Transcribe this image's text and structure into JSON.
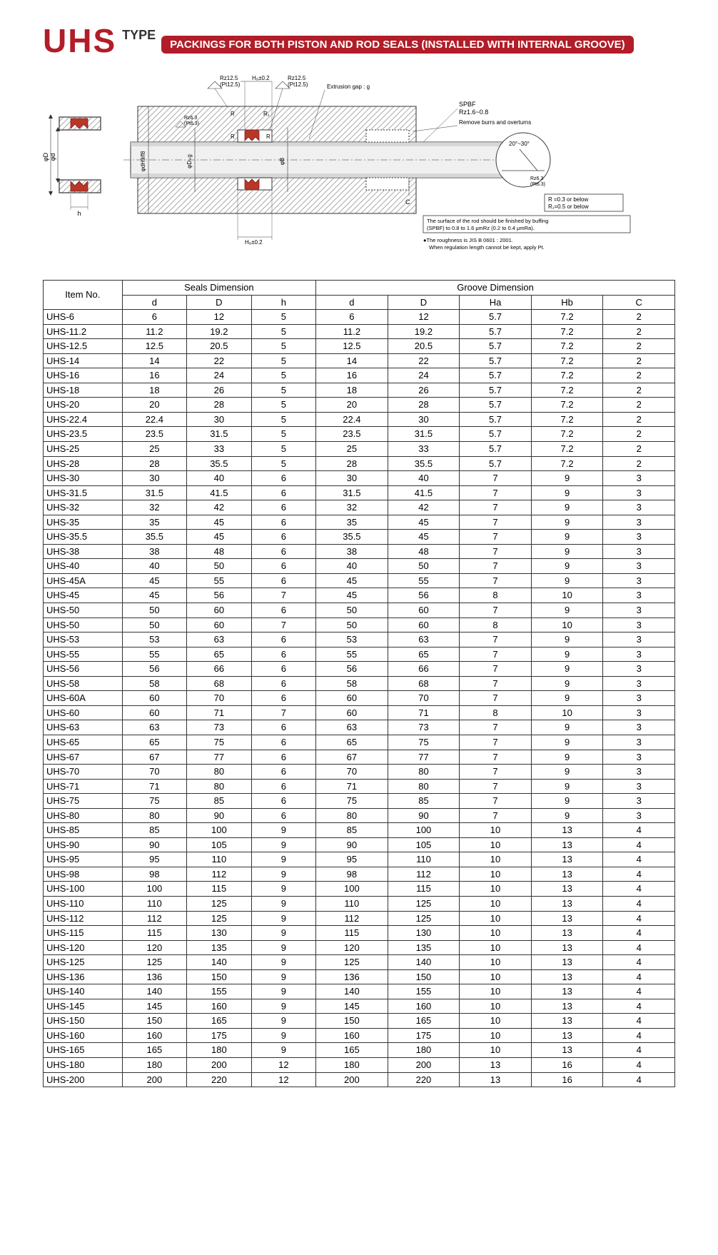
{
  "header": {
    "brand": "UHS",
    "type_label": "TYPE",
    "banner": "PACKINGS FOR BOTH PISTON AND ROD SEALS (INSTALLED WITH INTERNAL GROOVE)"
  },
  "diagram": {
    "labels": {
      "rz125_1": "Rz12.5",
      "pt125_1": "(Pt12.5)",
      "hb_tol": "H₈±0.2",
      "rz125_2": "Rz12.5",
      "pt125_2": "(Pt12.5)",
      "extrusion_gap": "Extrusion gap : g",
      "rz63": "Rz6.3",
      "pt63": "(Pt6.3)",
      "spbf": "SPBF",
      "spbf_val": "Rz1.6~0.8",
      "remove_burrs": "Remove burrs and overturns",
      "angle": "20°~30°",
      "rz63r": "Rz6.3",
      "pt63r": "(Pt6.3)",
      "r_note1": "R =0.3 or below",
      "r_note2": "R₁=0.5 or below",
      "surface_note": "The surface of the rod should be finished by buffing (SPBF) to 0.8 to 1.6 μmRz (0.2 to 0.4 μmRa).",
      "roughness_note": "●The roughness is JIS B 0601 : 2001.\nWhen regulation length cannot be kept, apply Pt.",
      "phi_D": "φD",
      "phi_d": "φd",
      "h": "h",
      "phi_dH9f8": "φdH9/f8",
      "phi_D_g": "φD₊g",
      "phi_B": "φB",
      "ha_tol": "H₈±0.2",
      "R": "R",
      "R1": "R₁",
      "C": "C"
    }
  },
  "table": {
    "headers": {
      "item_no": "Item No.",
      "seals_dim": "Seals Dimension",
      "groove_dim": "Groove Dimension",
      "d": "d",
      "D": "D",
      "h": "h",
      "gd": "d",
      "gD": "D",
      "Ha": "Ha",
      "Hb": "Hb",
      "C": "C"
    },
    "rows": [
      [
        "UHS-6",
        "6",
        "12",
        "5",
        "6",
        "12",
        "5.7",
        "7.2",
        "2"
      ],
      [
        "UHS-11.2",
        "11.2",
        "19.2",
        "5",
        "11.2",
        "19.2",
        "5.7",
        "7.2",
        "2"
      ],
      [
        "UHS-12.5",
        "12.5",
        "20.5",
        "5",
        "12.5",
        "20.5",
        "5.7",
        "7.2",
        "2"
      ],
      [
        "UHS-14",
        "14",
        "22",
        "5",
        "14",
        "22",
        "5.7",
        "7.2",
        "2"
      ],
      [
        "UHS-16",
        "16",
        "24",
        "5",
        "16",
        "24",
        "5.7",
        "7.2",
        "2"
      ],
      [
        "UHS-18",
        "18",
        "26",
        "5",
        "18",
        "26",
        "5.7",
        "7.2",
        "2"
      ],
      [
        "UHS-20",
        "20",
        "28",
        "5",
        "20",
        "28",
        "5.7",
        "7.2",
        "2"
      ],
      [
        "UHS-22.4",
        "22.4",
        "30",
        "5",
        "22.4",
        "30",
        "5.7",
        "7.2",
        "2"
      ],
      [
        "UHS-23.5",
        "23.5",
        "31.5",
        "5",
        "23.5",
        "31.5",
        "5.7",
        "7.2",
        "2"
      ],
      [
        "UHS-25",
        "25",
        "33",
        "5",
        "25",
        "33",
        "5.7",
        "7.2",
        "2"
      ],
      [
        "UHS-28",
        "28",
        "35.5",
        "5",
        "28",
        "35.5",
        "5.7",
        "7.2",
        "2"
      ],
      [
        "UHS-30",
        "30",
        "40",
        "6",
        "30",
        "40",
        "7",
        "9",
        "3"
      ],
      [
        "UHS-31.5",
        "31.5",
        "41.5",
        "6",
        "31.5",
        "41.5",
        "7",
        "9",
        "3"
      ],
      [
        "UHS-32",
        "32",
        "42",
        "6",
        "32",
        "42",
        "7",
        "9",
        "3"
      ],
      [
        "UHS-35",
        "35",
        "45",
        "6",
        "35",
        "45",
        "7",
        "9",
        "3"
      ],
      [
        "UHS-35.5",
        "35.5",
        "45",
        "6",
        "35.5",
        "45",
        "7",
        "9",
        "3"
      ],
      [
        "UHS-38",
        "38",
        "48",
        "6",
        "38",
        "48",
        "7",
        "9",
        "3"
      ],
      [
        "UHS-40",
        "40",
        "50",
        "6",
        "40",
        "50",
        "7",
        "9",
        "3"
      ],
      [
        "UHS-45A",
        "45",
        "55",
        "6",
        "45",
        "55",
        "7",
        "9",
        "3"
      ],
      [
        "UHS-45",
        "45",
        "56",
        "7",
        "45",
        "56",
        "8",
        "10",
        "3"
      ],
      [
        "UHS-50",
        "50",
        "60",
        "6",
        "50",
        "60",
        "7",
        "9",
        "3"
      ],
      [
        "UHS-50",
        "50",
        "60",
        "7",
        "50",
        "60",
        "8",
        "10",
        "3"
      ],
      [
        "UHS-53",
        "53",
        "63",
        "6",
        "53",
        "63",
        "7",
        "9",
        "3"
      ],
      [
        "UHS-55",
        "55",
        "65",
        "6",
        "55",
        "65",
        "7",
        "9",
        "3"
      ],
      [
        "UHS-56",
        "56",
        "66",
        "6",
        "56",
        "66",
        "7",
        "9",
        "3"
      ],
      [
        "UHS-58",
        "58",
        "68",
        "6",
        "58",
        "68",
        "7",
        "9",
        "3"
      ],
      [
        "UHS-60A",
        "60",
        "70",
        "6",
        "60",
        "70",
        "7",
        "9",
        "3"
      ],
      [
        "UHS-60",
        "60",
        "71",
        "7",
        "60",
        "71",
        "8",
        "10",
        "3"
      ],
      [
        "UHS-63",
        "63",
        "73",
        "6",
        "63",
        "73",
        "7",
        "9",
        "3"
      ],
      [
        "UHS-65",
        "65",
        "75",
        "6",
        "65",
        "75",
        "7",
        "9",
        "3"
      ],
      [
        "UHS-67",
        "67",
        "77",
        "6",
        "67",
        "77",
        "7",
        "9",
        "3"
      ],
      [
        "UHS-70",
        "70",
        "80",
        "6",
        "70",
        "80",
        "7",
        "9",
        "3"
      ],
      [
        "UHS-71",
        "71",
        "80",
        "6",
        "71",
        "80",
        "7",
        "9",
        "3"
      ],
      [
        "UHS-75",
        "75",
        "85",
        "6",
        "75",
        "85",
        "7",
        "9",
        "3"
      ],
      [
        "UHS-80",
        "80",
        "90",
        "6",
        "80",
        "90",
        "7",
        "9",
        "3"
      ],
      [
        "UHS-85",
        "85",
        "100",
        "9",
        "85",
        "100",
        "10",
        "13",
        "4"
      ],
      [
        "UHS-90",
        "90",
        "105",
        "9",
        "90",
        "105",
        "10",
        "13",
        "4"
      ],
      [
        "UHS-95",
        "95",
        "110",
        "9",
        "95",
        "110",
        "10",
        "13",
        "4"
      ],
      [
        "UHS-98",
        "98",
        "112",
        "9",
        "98",
        "112",
        "10",
        "13",
        "4"
      ],
      [
        "UHS-100",
        "100",
        "115",
        "9",
        "100",
        "115",
        "10",
        "13",
        "4"
      ],
      [
        "UHS-110",
        "110",
        "125",
        "9",
        "110",
        "125",
        "10",
        "13",
        "4"
      ],
      [
        "UHS-112",
        "112",
        "125",
        "9",
        "112",
        "125",
        "10",
        "13",
        "4"
      ],
      [
        "UHS-115",
        "115",
        "130",
        "9",
        "115",
        "130",
        "10",
        "13",
        "4"
      ],
      [
        "UHS-120",
        "120",
        "135",
        "9",
        "120",
        "135",
        "10",
        "13",
        "4"
      ],
      [
        "UHS-125",
        "125",
        "140",
        "9",
        "125",
        "140",
        "10",
        "13",
        "4"
      ],
      [
        "UHS-136",
        "136",
        "150",
        "9",
        "136",
        "150",
        "10",
        "13",
        "4"
      ],
      [
        "UHS-140",
        "140",
        "155",
        "9",
        "140",
        "155",
        "10",
        "13",
        "4"
      ],
      [
        "UHS-145",
        "145",
        "160",
        "9",
        "145",
        "160",
        "10",
        "13",
        "4"
      ],
      [
        "UHS-150",
        "150",
        "165",
        "9",
        "150",
        "165",
        "10",
        "13",
        "4"
      ],
      [
        "UHS-160",
        "160",
        "175",
        "9",
        "160",
        "175",
        "10",
        "13",
        "4"
      ],
      [
        "UHS-165",
        "165",
        "180",
        "9",
        "165",
        "180",
        "10",
        "13",
        "4"
      ],
      [
        "UHS-180",
        "180",
        "200",
        "12",
        "180",
        "200",
        "13",
        "16",
        "4"
      ],
      [
        "UHS-200",
        "200",
        "220",
        "12",
        "200",
        "220",
        "13",
        "16",
        "4"
      ]
    ],
    "col_widths_pct": [
      11,
      9,
      9,
      9,
      10,
      10,
      10,
      10,
      10
    ]
  },
  "colors": {
    "brand": "#b11d28",
    "seal_fill": "#ba3629",
    "metal": "#d9d9d9",
    "hatch": "#999999",
    "line": "#333333",
    "text": "#555555"
  }
}
